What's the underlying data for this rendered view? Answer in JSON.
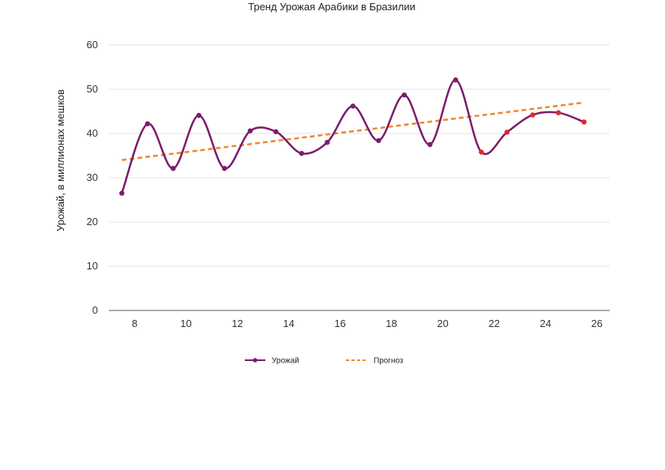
{
  "chart_data": {
    "type": "line",
    "title": "Тренд Урожая Арабики в Бразилии",
    "xlabel": "",
    "ylabel": "Урожай, в миллионах мешков",
    "xlim": [
      7,
      26.5
    ],
    "ylim": [
      0,
      60
    ],
    "xticks": [
      8,
      10,
      12,
      14,
      16,
      18,
      20,
      22,
      24,
      26
    ],
    "yticks": [
      0,
      10,
      20,
      30,
      40,
      50,
      60
    ],
    "grid": true,
    "legend_position": "bottom-center",
    "series": [
      {
        "name": "Урожай",
        "type": "line",
        "smooth": true,
        "color": "#7b1c6b",
        "x": [
          7.5,
          8.5,
          9.5,
          10.5,
          11.5,
          12.5,
          13.5,
          14.5,
          15.5,
          16.5,
          17.5,
          18.5,
          19.5,
          20.5,
          21.5,
          22.5,
          23.5,
          24.5,
          25.5
        ],
        "y": [
          26.5,
          42.2,
          32.1,
          44.1,
          32.1,
          40.6,
          40.4,
          35.5,
          38.0,
          46.2,
          38.4,
          48.7,
          37.5,
          52.1,
          35.8,
          40.3,
          44.2,
          44.7,
          42.6
        ],
        "forecast_from_index": 14,
        "forecast_marker_color": "#e0262b"
      },
      {
        "name": "Прогноз",
        "type": "line",
        "dashed": true,
        "color": "#f0872a",
        "x": [
          7.5,
          25.5
        ],
        "y": [
          34.0,
          47.0
        ]
      }
    ]
  }
}
